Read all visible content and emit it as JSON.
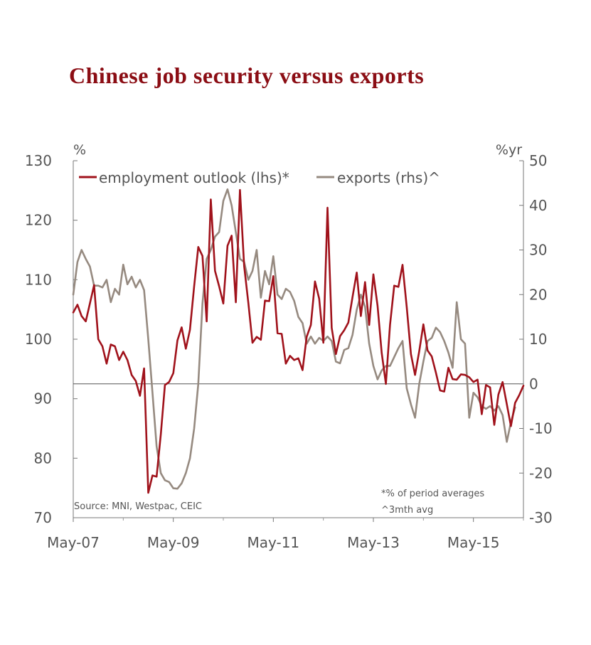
{
  "chart_data": {
    "type": "line",
    "title": "Chinese job security versus exports",
    "left_axis": {
      "unit": "%",
      "min": 70,
      "max": 130,
      "ticks": [
        "130",
        "120",
        "110",
        "100",
        "90",
        "80",
        "70"
      ]
    },
    "right_axis": {
      "unit": "%yr",
      "min": -30,
      "max": 50,
      "ticks": [
        "50",
        "40",
        "30",
        "20",
        "10",
        "0",
        "-10",
        "-20",
        "-30"
      ]
    },
    "x_axis": {
      "ticks": [
        "May-07",
        "May-09",
        "May-11",
        "May-13",
        "May-15"
      ],
      "start": "2007-05",
      "end": "2016-05"
    },
    "legend_position": "top-left",
    "series": [
      {
        "name": "employment outlook (lhs)*",
        "axis": "left",
        "color": "#a0121b",
        "points": [
          [
            "2007-05",
            104.5
          ],
          [
            "2007-06",
            105.8
          ],
          [
            "2007-07",
            103.9
          ],
          [
            "2007-08",
            103.0
          ],
          [
            "2007-09",
            106.0
          ],
          [
            "2007-10",
            109.1
          ],
          [
            "2007-11",
            100.0
          ],
          [
            "2007-12",
            98.8
          ],
          [
            "2008-01",
            95.9
          ],
          [
            "2008-02",
            99.1
          ],
          [
            "2008-03",
            98.8
          ],
          [
            "2008-04",
            96.5
          ],
          [
            "2008-05",
            97.9
          ],
          [
            "2008-06",
            96.5
          ],
          [
            "2008-07",
            94.0
          ],
          [
            "2008-08",
            93.0
          ],
          [
            "2008-09",
            90.5
          ],
          [
            "2008-10",
            95.1
          ],
          [
            "2008-11",
            74.2
          ],
          [
            "2008-12",
            77.1
          ],
          [
            "2009-01",
            76.9
          ],
          [
            "2009-02",
            84.0
          ],
          [
            "2009-03",
            92.3
          ],
          [
            "2009-04",
            92.8
          ],
          [
            "2009-05",
            94.3
          ],
          [
            "2009-06",
            99.8
          ],
          [
            "2009-07",
            102.0
          ],
          [
            "2009-08",
            98.4
          ],
          [
            "2009-09",
            101.6
          ],
          [
            "2009-10",
            108.9
          ],
          [
            "2009-11",
            115.5
          ],
          [
            "2009-12",
            114.0
          ],
          [
            "2010-01",
            103.0
          ],
          [
            "2010-02",
            123.5
          ],
          [
            "2010-03",
            111.5
          ],
          [
            "2010-04",
            108.9
          ],
          [
            "2010-05",
            106.0
          ],
          [
            "2010-06",
            115.7
          ],
          [
            "2010-07",
            117.4
          ],
          [
            "2010-08",
            106.2
          ],
          [
            "2010-09",
            125.1
          ],
          [
            "2010-10",
            112.3
          ],
          [
            "2010-11",
            106.1
          ],
          [
            "2010-12",
            99.4
          ],
          [
            "2011-01",
            100.4
          ],
          [
            "2011-02",
            99.9
          ],
          [
            "2011-03",
            106.5
          ],
          [
            "2011-04",
            106.4
          ],
          [
            "2011-05",
            110.6
          ],
          [
            "2011-06",
            101.0
          ],
          [
            "2011-07",
            100.9
          ],
          [
            "2011-08",
            95.9
          ],
          [
            "2011-09",
            97.2
          ],
          [
            "2011-10",
            96.5
          ],
          [
            "2011-11",
            96.8
          ],
          [
            "2011-12",
            94.8
          ],
          [
            "2012-01",
            100.4
          ],
          [
            "2012-02",
            102.4
          ],
          [
            "2012-03",
            109.7
          ],
          [
            "2012-04",
            106.8
          ],
          [
            "2012-05",
            99.4
          ],
          [
            "2012-06",
            122.1
          ],
          [
            "2012-07",
            101.9
          ],
          [
            "2012-08",
            97.5
          ],
          [
            "2012-09",
            100.5
          ],
          [
            "2012-10",
            101.5
          ],
          [
            "2012-11",
            102.8
          ],
          [
            "2012-12",
            107.1
          ],
          [
            "2013-01",
            111.2
          ],
          [
            "2013-02",
            103.9
          ],
          [
            "2013-03",
            109.6
          ],
          [
            "2013-04",
            102.4
          ],
          [
            "2013-05",
            110.9
          ],
          [
            "2013-06",
            105.6
          ],
          [
            "2013-07",
            97.7
          ],
          [
            "2013-08",
            92.5
          ],
          [
            "2013-09",
            102.4
          ],
          [
            "2013-10",
            109.0
          ],
          [
            "2013-11",
            108.8
          ],
          [
            "2013-12",
            112.5
          ],
          [
            "2014-01",
            105.4
          ],
          [
            "2014-02",
            97.5
          ],
          [
            "2014-03",
            94.0
          ],
          [
            "2014-04",
            98.0
          ],
          [
            "2014-05",
            102.5
          ],
          [
            "2014-06",
            98.1
          ],
          [
            "2014-07",
            97.1
          ],
          [
            "2014-08",
            94.4
          ],
          [
            "2014-09",
            91.4
          ],
          [
            "2014-10",
            91.2
          ],
          [
            "2014-11",
            95.2
          ],
          [
            "2014-12",
            93.3
          ],
          [
            "2015-01",
            93.2
          ],
          [
            "2015-02",
            94.1
          ],
          [
            "2015-03",
            94.0
          ],
          [
            "2015-04",
            93.6
          ],
          [
            "2015-05",
            92.8
          ],
          [
            "2015-06",
            93.2
          ],
          [
            "2015-07",
            87.4
          ],
          [
            "2015-08",
            92.3
          ],
          [
            "2015-09",
            91.9
          ],
          [
            "2015-10",
            85.6
          ],
          [
            "2015-11",
            90.7
          ],
          [
            "2015-12",
            92.8
          ],
          [
            "2016-01",
            89.1
          ],
          [
            "2016-02",
            85.4
          ],
          [
            "2016-03",
            89.3
          ],
          [
            "2016-04",
            90.6
          ],
          [
            "2016-05",
            92.2
          ]
        ]
      },
      {
        "name": "exports (rhs)^",
        "axis": "right",
        "color": "#968a80",
        "points": [
          [
            "2007-05",
            20.0
          ],
          [
            "2007-06",
            27.3
          ],
          [
            "2007-07",
            30.0
          ],
          [
            "2007-08",
            28.0
          ],
          [
            "2007-09",
            26.3
          ],
          [
            "2007-10",
            22.0
          ],
          [
            "2007-11",
            22.0
          ],
          [
            "2007-12",
            21.6
          ],
          [
            "2008-01",
            23.3
          ],
          [
            "2008-02",
            18.3
          ],
          [
            "2008-03",
            21.3
          ],
          [
            "2008-04",
            20.0
          ],
          [
            "2008-05",
            26.7
          ],
          [
            "2008-06",
            22.3
          ],
          [
            "2008-07",
            24.0
          ],
          [
            "2008-08",
            21.6
          ],
          [
            "2008-09",
            23.3
          ],
          [
            "2008-10",
            21.0
          ],
          [
            "2008-11",
            10.0
          ],
          [
            "2008-12",
            -2.0
          ],
          [
            "2009-01",
            -14.0
          ],
          [
            "2009-02",
            -20.0
          ],
          [
            "2009-03",
            -21.6
          ],
          [
            "2009-04",
            -22.0
          ],
          [
            "2009-05",
            -23.4
          ],
          [
            "2009-06",
            -23.5
          ],
          [
            "2009-07",
            -22.3
          ],
          [
            "2009-08",
            -20.0
          ],
          [
            "2009-09",
            -16.7
          ],
          [
            "2009-10",
            -10.0
          ],
          [
            "2009-11",
            0.0
          ],
          [
            "2009-12",
            18.0
          ],
          [
            "2010-01",
            28.0
          ],
          [
            "2010-02",
            30.0
          ],
          [
            "2010-03",
            33.0
          ],
          [
            "2010-04",
            34.0
          ],
          [
            "2010-05",
            41.0
          ],
          [
            "2010-06",
            43.6
          ],
          [
            "2010-07",
            40.0
          ],
          [
            "2010-08",
            34.0
          ],
          [
            "2010-09",
            28.0
          ],
          [
            "2010-10",
            27.3
          ],
          [
            "2010-11",
            23.3
          ],
          [
            "2010-12",
            25.3
          ],
          [
            "2011-01",
            30.0
          ],
          [
            "2011-02",
            19.3
          ],
          [
            "2011-03",
            25.3
          ],
          [
            "2011-04",
            22.3
          ],
          [
            "2011-05",
            28.6
          ],
          [
            "2011-06",
            20.0
          ],
          [
            "2011-07",
            19.0
          ],
          [
            "2011-08",
            21.3
          ],
          [
            "2011-09",
            20.6
          ],
          [
            "2011-10",
            18.6
          ],
          [
            "2011-11",
            15.0
          ],
          [
            "2011-12",
            13.6
          ],
          [
            "2012-01",
            9.0
          ],
          [
            "2012-02",
            10.6
          ],
          [
            "2012-03",
            9.0
          ],
          [
            "2012-04",
            10.3
          ],
          [
            "2012-05",
            9.6
          ],
          [
            "2012-06",
            10.6
          ],
          [
            "2012-07",
            9.6
          ],
          [
            "2012-08",
            5.0
          ],
          [
            "2012-09",
            4.6
          ],
          [
            "2012-10",
            7.6
          ],
          [
            "2012-11",
            8.0
          ],
          [
            "2012-12",
            11.0
          ],
          [
            "2013-01",
            16.6
          ],
          [
            "2013-02",
            20.0
          ],
          [
            "2013-03",
            17.3
          ],
          [
            "2013-04",
            9.0
          ],
          [
            "2013-05",
            4.0
          ],
          [
            "2013-06",
            1.0
          ],
          [
            "2013-07",
            3.0
          ],
          [
            "2013-08",
            4.0
          ],
          [
            "2013-09",
            4.0
          ],
          [
            "2013-10",
            6.0
          ],
          [
            "2013-11",
            8.0
          ],
          [
            "2013-12",
            9.6
          ],
          [
            "2014-01",
            -1.0
          ],
          [
            "2014-02",
            -4.6
          ],
          [
            "2014-03",
            -7.6
          ],
          [
            "2014-04",
            0.0
          ],
          [
            "2014-05",
            5.0
          ],
          [
            "2014-06",
            9.6
          ],
          [
            "2014-07",
            10.3
          ],
          [
            "2014-08",
            12.6
          ],
          [
            "2014-09",
            11.6
          ],
          [
            "2014-10",
            9.6
          ],
          [
            "2014-11",
            7.0
          ],
          [
            "2014-12",
            3.6
          ],
          [
            "2015-01",
            18.3
          ],
          [
            "2015-02",
            10.0
          ],
          [
            "2015-03",
            9.0
          ],
          [
            "2015-04",
            -7.6
          ],
          [
            "2015-05",
            -2.0
          ],
          [
            "2015-06",
            -3.0
          ],
          [
            "2015-07",
            -5.0
          ],
          [
            "2015-08",
            -5.6
          ],
          [
            "2015-09",
            -5.0
          ],
          [
            "2015-10",
            -6.0
          ],
          [
            "2015-11",
            -5.0
          ],
          [
            "2015-12",
            -7.0
          ],
          [
            "2016-01",
            -13.0
          ],
          [
            "2016-02",
            -8.6
          ],
          [
            "2016-03",
            -5.3
          ]
        ]
      }
    ],
    "annotations": [
      "Source: MNI, Westpac, CEIC",
      "*% of period averages",
      "^3mth avg"
    ]
  }
}
